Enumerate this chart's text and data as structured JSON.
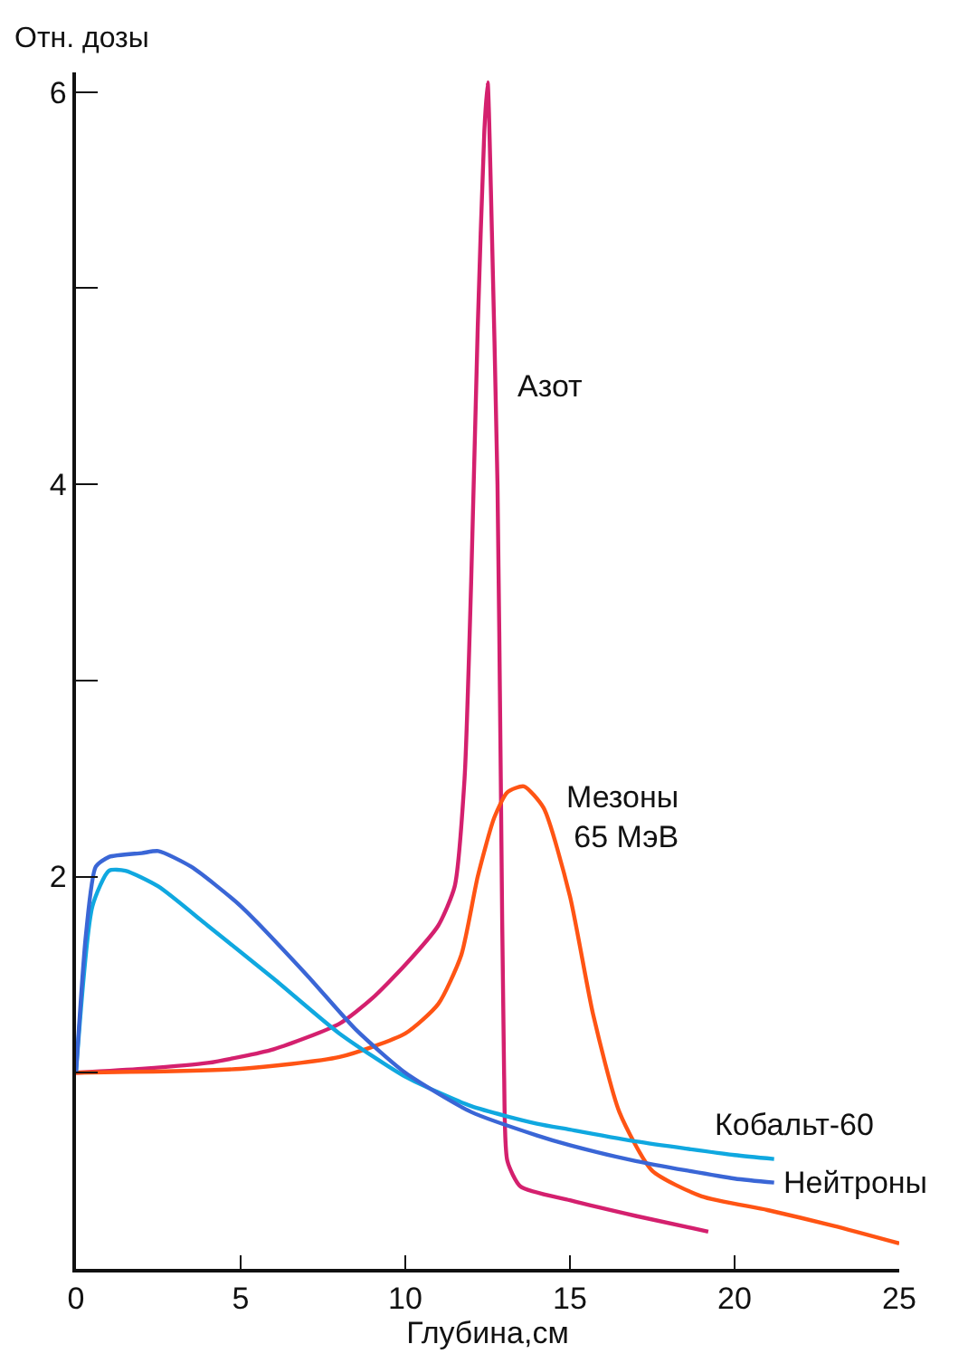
{
  "chart_data": {
    "type": "line",
    "xlabel": "Глубина,см",
    "ylabel": "Отн. дозы",
    "xlim": [
      0,
      25
    ],
    "xticks": [
      0,
      5,
      10,
      15,
      20,
      25
    ],
    "ylim": [
      0,
      6.1
    ],
    "yticks": [
      {
        "value": 1,
        "label": null
      },
      2,
      {
        "value": 3,
        "label": null
      },
      4,
      {
        "value": 5,
        "label": null
      },
      6
    ],
    "grid": false,
    "legend": false,
    "marker": "none",
    "line_style": "solid",
    "series": [
      {
        "name": "Азот",
        "color": "#d4206e",
        "x": [
          0,
          2,
          4,
          6,
          8,
          9,
          10,
          11,
          11.5,
          11.8,
          12.0,
          12.2,
          12.4,
          12.5,
          12.6,
          12.8,
          12.9,
          13.0,
          13.1,
          13.5,
          15,
          17,
          19.2
        ],
        "values": [
          1,
          1.02,
          1.05,
          1.12,
          1.25,
          1.38,
          1.55,
          1.75,
          1.95,
          2.5,
          3.5,
          4.8,
          5.8,
          6.05,
          5.5,
          4,
          2.5,
          1,
          0.55,
          0.42,
          0.35,
          0.27,
          0.19
        ]
      },
      {
        "name": "Мезоны\n65 МэВ",
        "color": "#ff5414",
        "x": [
          0,
          5,
          8,
          10,
          11,
          11.7,
          12.2,
          12.7,
          13.1,
          13.6,
          14.2,
          15,
          15.7,
          16.5,
          17.5,
          19,
          21,
          23,
          25
        ],
        "values": [
          1,
          1.02,
          1.08,
          1.2,
          1.35,
          1.6,
          2.0,
          2.3,
          2.43,
          2.46,
          2.35,
          1.9,
          1.3,
          0.8,
          0.5,
          0.37,
          0.3,
          0.22,
          0.13
        ]
      },
      {
        "name": "Кобальт-60",
        "color": "#10a8e0",
        "x": [
          0,
          0.5,
          1,
          1.5,
          2.5,
          4,
          6,
          8,
          10,
          12,
          14,
          15,
          17,
          20,
          21.2
        ],
        "values": [
          1,
          1.85,
          2.03,
          2.03,
          1.95,
          1.75,
          1.48,
          1.2,
          0.98,
          0.83,
          0.74,
          0.71,
          0.65,
          0.58,
          0.56
        ]
      },
      {
        "name": "Нейтроны",
        "color": "#3a66d6",
        "x": [
          0,
          0.3,
          0.6,
          1,
          2,
          2.5,
          3.5,
          5,
          7,
          8.5,
          10,
          12,
          14,
          15,
          17,
          20,
          21.2
        ],
        "values": [
          1,
          1.7,
          2.05,
          2.1,
          2.12,
          2.13,
          2.05,
          1.85,
          1.5,
          1.22,
          1.0,
          0.8,
          0.68,
          0.63,
          0.55,
          0.46,
          0.44
        ]
      }
    ]
  }
}
